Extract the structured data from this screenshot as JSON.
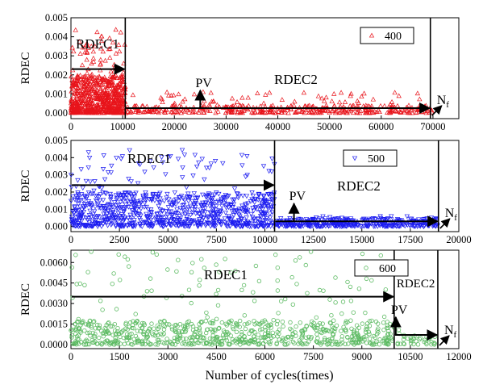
{
  "figure": {
    "xlabel": "Number of cycles(times)"
  },
  "chart_data": [
    {
      "type": "scatter",
      "marker": "triangle-up",
      "color": "#e8141b",
      "xlabel": "",
      "ylabel": "RDEC",
      "xlim": [
        0,
        75000
      ],
      "ylim": [
        -0.0003,
        0.005
      ],
      "xticks": [
        0,
        10000,
        20000,
        30000,
        40000,
        50000,
        60000,
        70000
      ],
      "xtick_labels": [
        "0",
        "10000",
        "20000",
        "30000",
        "40000",
        "50000",
        "60000",
        "70000"
      ],
      "yticks": [
        0,
        0.001,
        0.002,
        0.003,
        0.004,
        0.005
      ],
      "ytick_labels": [
        "0.000",
        "0.001",
        "0.002",
        "0.003",
        "0.004",
        "0.005"
      ],
      "legend": {
        "label": "400",
        "position": "top-right"
      },
      "series": [
        {
          "name": "400",
          "segments": [
            {
              "x_range": [
                0,
                10500
              ],
              "y_mean": 0.0009,
              "y_max": 0.0044,
              "count": 700
            },
            {
              "x_range": [
                10500,
                70000
              ],
              "y_mean": 0.00018,
              "y_max": 0.0011,
              "count": 420
            }
          ]
        }
      ],
      "dividers": [
        10500,
        69500
      ],
      "annotations": {
        "region1": "RDEC1",
        "region2": "RDEC2",
        "pv": "PV",
        "nf": "N",
        "nf_sub": "f",
        "arrow1_y": 0.0023,
        "arrow2_y": 0.00025,
        "pv_x": 25000
      }
    },
    {
      "type": "scatter",
      "marker": "triangle-down",
      "color": "#1c1cf0",
      "xlabel": "",
      "ylabel": "RDEC",
      "xlim": [
        0,
        20000
      ],
      "ylim": [
        -0.0003,
        0.005
      ],
      "xticks": [
        0,
        2500,
        5000,
        7500,
        10000,
        12500,
        15000,
        17500,
        20000
      ],
      "xtick_labels": [
        "0",
        "2500",
        "5000",
        "7500",
        "10000",
        "12500",
        "15000",
        "17500",
        "20000"
      ],
      "yticks": [
        0,
        0.001,
        0.002,
        0.003,
        0.004,
        0.005
      ],
      "ytick_labels": [
        "0.000",
        "0.001",
        "0.002",
        "0.003",
        "0.004",
        "0.005"
      ],
      "legend": {
        "label": "500",
        "position": "top-right"
      },
      "series": [
        {
          "name": "500",
          "segments": [
            {
              "x_range": [
                0,
                10500
              ],
              "y_mean": 0.0009,
              "y_max": 0.0045,
              "count": 900
            },
            {
              "x_range": [
                10500,
                18950
              ],
              "y_mean": 0.00022,
              "y_max": 0.0006,
              "count": 380
            }
          ]
        }
      ],
      "dividers": [
        10500,
        18950
      ],
      "annotations": {
        "region1": "RDEC1",
        "region2": "RDEC2",
        "pv": "PV",
        "nf": "N",
        "nf_sub": "f",
        "arrow1_y": 0.0024,
        "arrow2_y": 0.0003,
        "pv_x": 11500
      }
    },
    {
      "type": "scatter",
      "marker": "circle",
      "color": "#5dbb63",
      "xlabel": "Number of cycles(times)",
      "ylabel": "RDEC",
      "xlim": [
        0,
        12000
      ],
      "ylim": [
        -0.0003,
        0.0069
      ],
      "xticks": [
        0,
        1500,
        3000,
        4500,
        6000,
        7500,
        9000,
        10500,
        12000
      ],
      "xtick_labels": [
        "0",
        "1500",
        "3000",
        "4500",
        "6000",
        "7500",
        "9000",
        "10500",
        "12000"
      ],
      "yticks": [
        0,
        0.0015,
        0.003,
        0.0045,
        0.006
      ],
      "ytick_labels": [
        "0.0000",
        "0.0015",
        "0.0030",
        "0.0045",
        "0.0060"
      ],
      "legend": {
        "label": "600",
        "position": "top-right"
      },
      "series": [
        {
          "name": "600",
          "segments": [
            {
              "x_range": [
                0,
                10000
              ],
              "y_mean": 0.0008,
              "y_max": 0.0068,
              "count": 800
            },
            {
              "x_range": [
                10000,
                11350
              ],
              "y_mean": 0.0004,
              "y_max": 0.0012,
              "count": 40
            }
          ]
        }
      ],
      "dividers": [
        10000,
        11350
      ],
      "annotations": {
        "region1": "RDEC1",
        "region2": "RDEC2",
        "pv": "PV",
        "nf": "N",
        "nf_sub": "f",
        "arrow1_y": 0.0035,
        "arrow2_y": 0.0007,
        "pv_x": 10050
      }
    }
  ]
}
